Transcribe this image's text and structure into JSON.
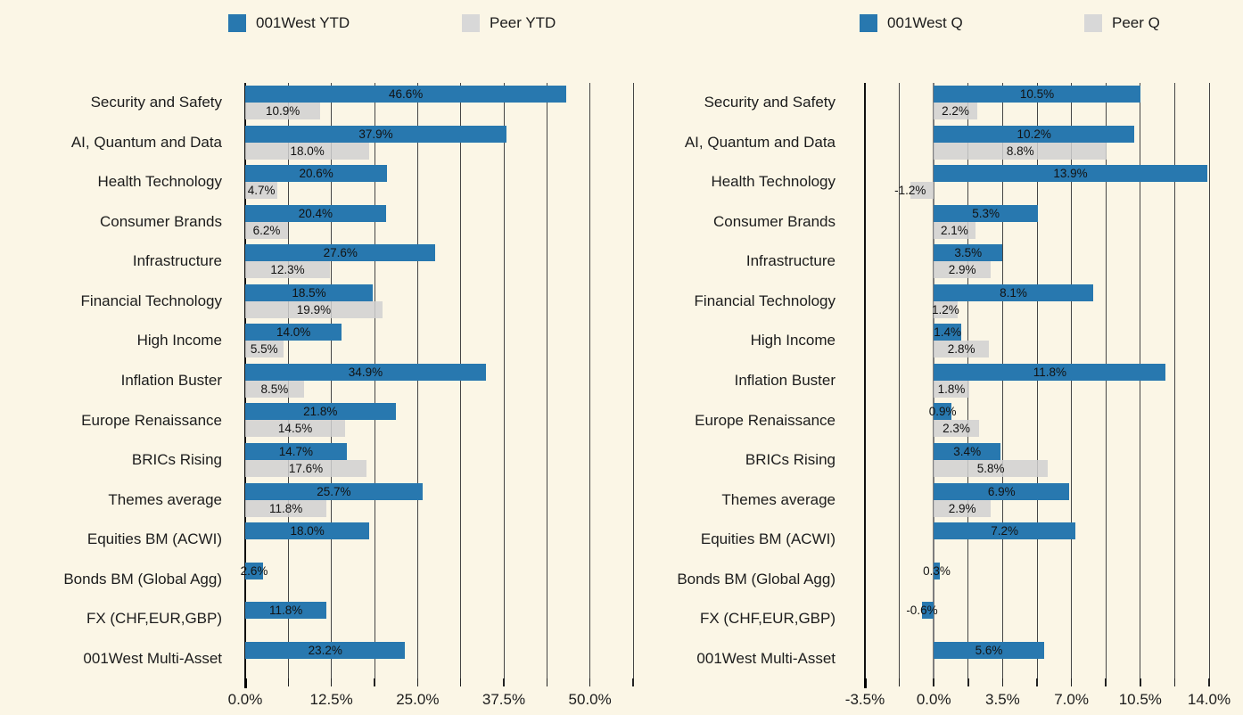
{
  "colors": {
    "background": "#fbf6e6",
    "primary_blue": "#2878af",
    "peer_gray": "#d8d8d8",
    "gridline": "#454545",
    "zero_line": "#7d7d7d",
    "spine": "#101010",
    "text": "#1c1c1c"
  },
  "legends": [
    {
      "items": [
        {
          "label": "001West YTD",
          "color_key": "blue"
        },
        {
          "label": "Peer YTD",
          "color_key": "gray"
        }
      ]
    },
    {
      "items": [
        {
          "label": "001West Q",
          "color_key": "blue"
        },
        {
          "label": "Peer Q",
          "color_key": "gray"
        }
      ]
    }
  ],
  "chart_data": [
    {
      "type": "bar",
      "orientation": "horizontal",
      "title": "",
      "legend_position": "top",
      "grid": true,
      "categories": [
        "Security and Safety",
        "AI, Quantum and Data",
        "Health Technology",
        "Consumer Brands",
        "Infrastructure",
        "Financial Technology",
        "High Income",
        "Inflation Buster",
        "Europe Renaissance",
        "BRICs Rising",
        "Themes average",
        "Equities BM (ACWI)",
        "Bonds BM (Global Agg)",
        "FX (CHF,EUR,GBP)",
        "001West Multi-Asset"
      ],
      "series": [
        {
          "name": "001West YTD",
          "color_key": "blue",
          "values": [
            46.6,
            37.9,
            20.6,
            20.4,
            27.6,
            18.5,
            14.0,
            34.9,
            21.8,
            14.7,
            25.7,
            18.0,
            2.6,
            11.8,
            23.2
          ]
        },
        {
          "name": "Peer YTD",
          "color_key": "gray",
          "values": [
            10.9,
            18.0,
            4.7,
            6.2,
            12.3,
            19.9,
            5.5,
            8.5,
            14.5,
            17.6,
            11.8,
            null,
            null,
            null,
            null
          ]
        }
      ],
      "xlim": [
        0,
        56.25
      ],
      "xticks": [
        0,
        12.5,
        25,
        37.5,
        50
      ],
      "xtick_labels": [
        "0.0%",
        "12.5%",
        "25.0%",
        "37.5%",
        "50.0%"
      ],
      "minor_step": 6.25,
      "value_label_format": "one_decimal_percent"
    },
    {
      "type": "bar",
      "orientation": "horizontal",
      "title": "",
      "legend_position": "top",
      "grid": true,
      "categories": [
        "Security and Safety",
        "AI, Quantum and Data",
        "Health Technology",
        "Consumer Brands",
        "Infrastructure",
        "Financial Technology",
        "High Income",
        "Inflation Buster",
        "Europe Renaissance",
        "BRICs Rising",
        "Themes average",
        "Equities BM (ACWI)",
        "Bonds BM (Global Agg)",
        "FX (CHF,EUR,GBP)",
        "001West Multi-Asset"
      ],
      "series": [
        {
          "name": "001West Q",
          "color_key": "blue",
          "values": [
            10.5,
            10.2,
            13.9,
            5.3,
            3.5,
            8.1,
            1.4,
            11.8,
            0.9,
            3.4,
            6.9,
            7.2,
            0.3,
            -0.6,
            5.6
          ]
        },
        {
          "name": "Peer Q",
          "color_key": "gray",
          "values": [
            2.2,
            8.8,
            -1.2,
            2.1,
            2.9,
            1.2,
            2.8,
            1.8,
            2.3,
            5.8,
            2.9,
            null,
            null,
            null,
            null
          ]
        }
      ],
      "xlim": [
        -3.5,
        14.0
      ],
      "xticks": [
        -3.5,
        0,
        3.5,
        7,
        10.5,
        14
      ],
      "xtick_labels": [
        "-3.5%",
        "0.0%",
        "3.5%",
        "7.0%",
        "10.5%",
        "14.0%"
      ],
      "minor_step": 1.75,
      "value_label_format": "one_decimal_percent"
    }
  ]
}
